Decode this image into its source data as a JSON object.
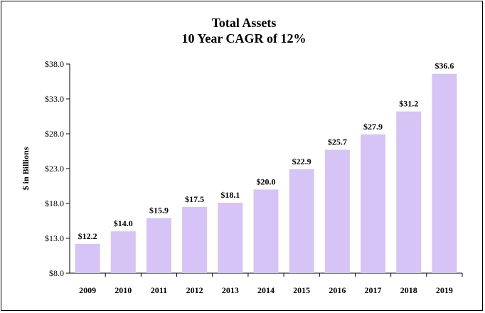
{
  "chart_data": {
    "type": "bar",
    "title": "Total Assets",
    "subtitle": "10 Year CAGR of 12%",
    "ylabel": "$ in Billions",
    "xlabel": "",
    "categories": [
      "2009",
      "2010",
      "2011",
      "2012",
      "2013",
      "2014",
      "2015",
      "2016",
      "2017",
      "2018",
      "2019"
    ],
    "values": [
      12.2,
      14.0,
      15.9,
      17.5,
      18.1,
      20.0,
      22.9,
      25.7,
      27.9,
      31.2,
      36.6
    ],
    "value_labels": [
      "$12.2",
      "$14.0",
      "$15.9",
      "$17.5",
      "$18.1",
      "$20.0",
      "$22.9",
      "$25.7",
      "$27.9",
      "$31.2",
      "$36.6"
    ],
    "ylim": [
      8.0,
      38.0
    ],
    "yticks": [
      8.0,
      13.0,
      18.0,
      23.0,
      28.0,
      33.0,
      38.0
    ],
    "ytick_labels": [
      "$8.0",
      "$13.0",
      "$18.0",
      "$23.0",
      "$28.0",
      "$33.0",
      "$38.0"
    ],
    "grid": false,
    "legend": "none",
    "bar_color": "#d5c4f5"
  }
}
